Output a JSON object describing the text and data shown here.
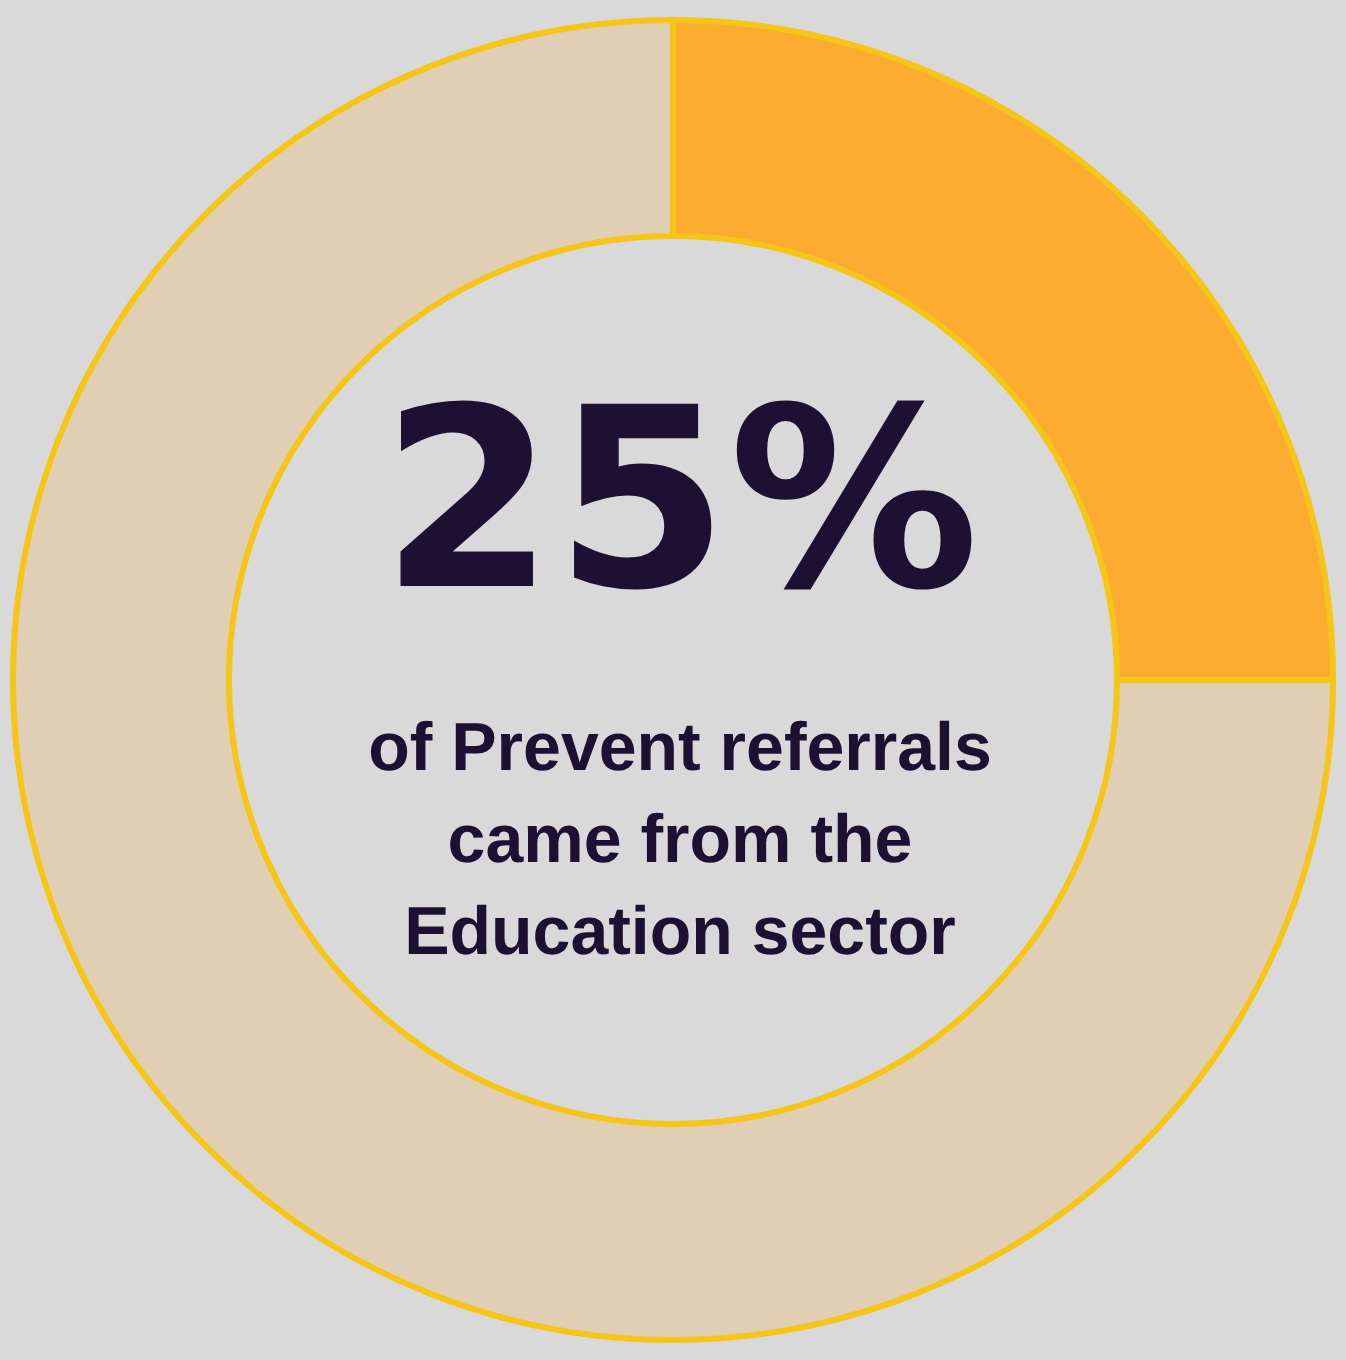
{
  "chart_data": {
    "type": "donut",
    "categories": [
      null,
      null
    ],
    "values": [
      25,
      75
    ],
    "colors": [
      "#fbab30",
      "#e0cfb4"
    ],
    "value_labels": [
      "25%",
      null
    ],
    "annotations": [
      "of Prevent referrals came from the Education sector"
    ]
  }
}
